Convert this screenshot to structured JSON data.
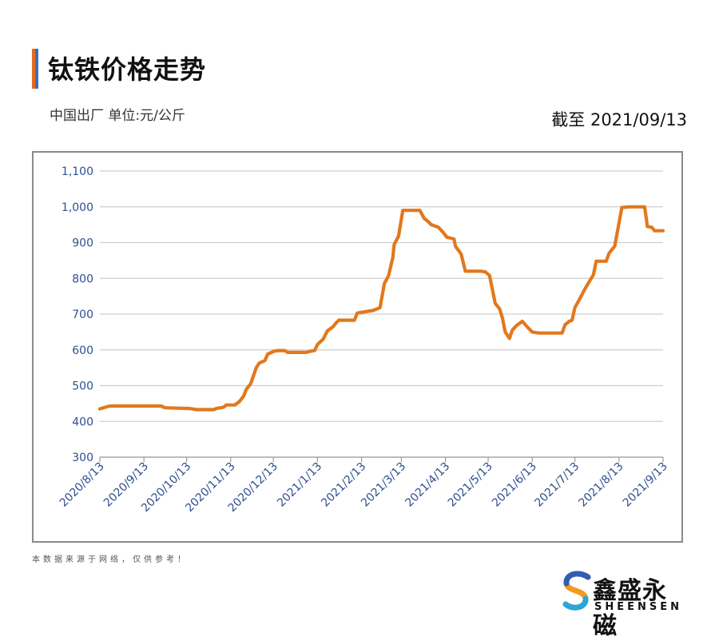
{
  "header": {
    "title": "钛铁价格走势",
    "subtitle": "中国出厂  单位:元/公斤",
    "as_of": "截至 2021/09/13"
  },
  "footnote": "本数据来源于网络，仅供参考！",
  "brand": {
    "name_cn": "鑫盛永磁",
    "name_en": "SHEENSEN"
  },
  "colors": {
    "line": "#e2781d",
    "grid": "#cfcfcf",
    "tick_text": "#2f4f8f",
    "accent_orange": "#e56b1f",
    "accent_blue": "#3a6fc4"
  },
  "chart_data": {
    "type": "line",
    "title": "钛铁价格走势",
    "ylim": [
      300,
      1100
    ],
    "y_ticks": [
      "300",
      "400",
      "500",
      "600",
      "700",
      "800",
      "900",
      "1,000",
      "1,100"
    ],
    "x_ticks": [
      "2020/8/13",
      "2020/9/13",
      "2020/10/13",
      "2020/11/13",
      "2020/12/13",
      "2021/1/13",
      "2021/2/13",
      "2021/3/13",
      "2021/4/13",
      "2021/5/13",
      "2021/6/13",
      "2021/7/13",
      "2021/8/13",
      "2021/9/13"
    ],
    "grid": "horizontal",
    "series": [
      {
        "points": [
          [
            "2020-08-13",
            435
          ],
          [
            "2020-08-17",
            440
          ],
          [
            "2020-08-20",
            443
          ],
          [
            "2020-08-28",
            443
          ],
          [
            "2020-09-15",
            443
          ],
          [
            "2020-09-25",
            443
          ],
          [
            "2020-09-28",
            438
          ],
          [
            "2020-10-15",
            436
          ],
          [
            "2020-10-20",
            433
          ],
          [
            "2020-11-01",
            433
          ],
          [
            "2020-11-03",
            436
          ],
          [
            "2020-11-08",
            440
          ],
          [
            "2020-11-10",
            446
          ],
          [
            "2020-11-16",
            446
          ],
          [
            "2020-11-19",
            455
          ],
          [
            "2020-11-22",
            470
          ],
          [
            "2020-11-24",
            490
          ],
          [
            "2020-11-27",
            505
          ],
          [
            "2020-12-01",
            550
          ],
          [
            "2020-12-03",
            563
          ],
          [
            "2020-12-07",
            570
          ],
          [
            "2020-12-09",
            588
          ],
          [
            "2020-12-14",
            597
          ],
          [
            "2020-12-17",
            598
          ],
          [
            "2020-12-21",
            598
          ],
          [
            "2020-12-23",
            593
          ],
          [
            "2021-01-05",
            593
          ],
          [
            "2021-01-08",
            596
          ],
          [
            "2021-01-11",
            598
          ],
          [
            "2021-01-13",
            615
          ],
          [
            "2021-01-17",
            630
          ],
          [
            "2021-01-20",
            653
          ],
          [
            "2021-01-24",
            665
          ],
          [
            "2021-01-26",
            675
          ],
          [
            "2021-01-28",
            683
          ],
          [
            "2021-02-08",
            683
          ],
          [
            "2021-02-10",
            703
          ],
          [
            "2021-02-21",
            710
          ],
          [
            "2021-02-26",
            718
          ],
          [
            "2021-03-01",
            785
          ],
          [
            "2021-03-04",
            808
          ],
          [
            "2021-03-07",
            858
          ],
          [
            "2021-03-08",
            895
          ],
          [
            "2021-03-11",
            918
          ],
          [
            "2021-03-14",
            990
          ],
          [
            "2021-03-26",
            990
          ],
          [
            "2021-03-29",
            968
          ],
          [
            "2021-04-01",
            958
          ],
          [
            "2021-04-03",
            950
          ],
          [
            "2021-04-08",
            943
          ],
          [
            "2021-04-11",
            930
          ],
          [
            "2021-04-14",
            915
          ],
          [
            "2021-04-19",
            910
          ],
          [
            "2021-04-20",
            890
          ],
          [
            "2021-04-24",
            868
          ],
          [
            "2021-04-27",
            820
          ],
          [
            "2021-05-08",
            820
          ],
          [
            "2021-05-11",
            818
          ],
          [
            "2021-05-14",
            808
          ],
          [
            "2021-05-18",
            730
          ],
          [
            "2021-05-21",
            715
          ],
          [
            "2021-05-23",
            690
          ],
          [
            "2021-05-25",
            650
          ],
          [
            "2021-05-28",
            632
          ],
          [
            "2021-05-30",
            655
          ],
          [
            "2021-06-02",
            668
          ],
          [
            "2021-06-06",
            680
          ],
          [
            "2021-06-10",
            662
          ],
          [
            "2021-06-13",
            650
          ],
          [
            "2021-06-18",
            647
          ],
          [
            "2021-07-04",
            647
          ],
          [
            "2021-07-06",
            670
          ],
          [
            "2021-07-09",
            680
          ],
          [
            "2021-07-11",
            683
          ],
          [
            "2021-07-13",
            718
          ],
          [
            "2021-07-16",
            740
          ],
          [
            "2021-07-20",
            770
          ],
          [
            "2021-07-23",
            790
          ],
          [
            "2021-07-26",
            810
          ],
          [
            "2021-07-28",
            848
          ],
          [
            "2021-08-04",
            848
          ],
          [
            "2021-08-06",
            870
          ],
          [
            "2021-08-10",
            890
          ],
          [
            "2021-08-15",
            998
          ],
          [
            "2021-08-20",
            1000
          ],
          [
            "2021-08-31",
            1000
          ],
          [
            "2021-09-02",
            945
          ],
          [
            "2021-09-05",
            943
          ],
          [
            "2021-09-07",
            933
          ],
          [
            "2021-09-13",
            933
          ]
        ]
      }
    ]
  }
}
